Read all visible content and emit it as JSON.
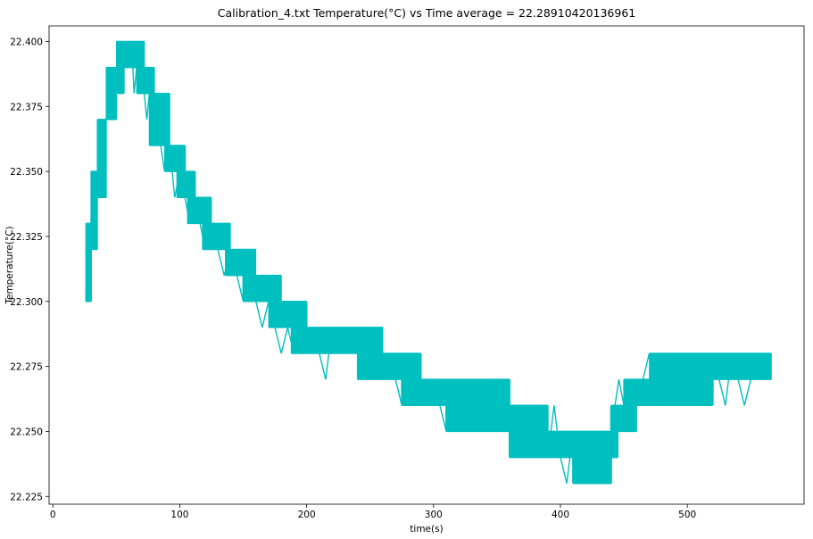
{
  "chart_data": {
    "type": "line",
    "title": "Calibration_4.txt  Temperature(°C) vs Time  average = 22.28910420136961",
    "xlabel": "time(s)",
    "ylabel": "Temperature(°C)",
    "xlim": [
      -3,
      592
    ],
    "ylim": [
      22.222,
      22.406
    ],
    "xticks": [
      0,
      100,
      200,
      300,
      400,
      500
    ],
    "yticks": [
      22.225,
      22.25,
      22.275,
      22.3,
      22.325,
      22.35,
      22.375,
      22.4
    ],
    "ytick_labels": [
      "22.225",
      "22.250",
      "22.275",
      "22.300",
      "22.325",
      "22.350",
      "22.375",
      "22.400"
    ],
    "grid": false,
    "line_color": "#00bfbf",
    "series": [
      {
        "x": [
          26,
          27,
          28,
          29,
          30,
          31,
          32,
          34,
          35,
          36,
          38,
          40,
          42,
          45,
          48,
          50,
          53,
          56,
          58,
          60,
          62,
          64,
          66,
          68,
          70,
          72,
          74,
          76,
          78,
          80,
          82,
          85,
          88,
          92,
          96,
          100,
          104,
          108,
          112,
          116,
          120,
          125,
          130,
          135,
          140,
          145,
          150,
          155,
          160,
          165,
          170,
          175,
          180,
          185,
          190,
          195,
          200,
          205,
          210,
          215,
          220,
          225,
          230,
          235,
          240,
          245,
          250,
          255,
          260,
          265,
          270,
          275,
          280,
          285,
          290,
          295,
          300,
          305,
          310,
          315,
          320,
          325,
          330,
          335,
          340,
          345,
          350,
          355,
          360,
          365,
          370,
          375,
          380,
          385,
          390,
          395,
          400,
          405,
          410,
          415,
          418,
          420,
          425,
          430,
          435,
          440,
          443,
          446,
          450,
          455,
          460,
          465,
          470,
          475,
          480,
          485,
          490,
          495,
          500,
          505,
          510,
          515,
          520,
          525,
          530,
          535,
          540,
          545,
          550,
          555,
          560,
          565,
          566
        ],
        "y": [
          22.3,
          22.32,
          22.33,
          22.32,
          22.33,
          22.34,
          22.33,
          22.34,
          22.35,
          22.34,
          22.36,
          22.35,
          22.37,
          22.38,
          22.37,
          22.39,
          22.4,
          22.39,
          22.4,
          22.39,
          22.4,
          22.38,
          22.39,
          22.38,
          22.39,
          22.38,
          22.37,
          22.38,
          22.37,
          22.36,
          22.37,
          22.36,
          22.35,
          22.36,
          22.34,
          22.35,
          22.34,
          22.33,
          22.34,
          22.33,
          22.32,
          22.33,
          22.32,
          22.31,
          22.32,
          22.31,
          22.3,
          22.31,
          22.3,
          22.29,
          22.3,
          22.29,
          22.28,
          22.29,
          22.28,
          22.29,
          22.28,
          22.29,
          22.28,
          22.27,
          22.29,
          22.28,
          22.29,
          22.28,
          22.29,
          22.27,
          22.29,
          22.28,
          22.27,
          22.28,
          22.27,
          22.26,
          22.27,
          22.26,
          22.27,
          22.26,
          22.27,
          22.26,
          22.25,
          22.27,
          22.26,
          22.25,
          22.26,
          22.27,
          22.26,
          22.25,
          22.26,
          22.25,
          22.26,
          22.25,
          22.24,
          22.25,
          22.24,
          22.25,
          22.24,
          22.26,
          22.24,
          22.23,
          22.25,
          22.24,
          22.23,
          22.25,
          22.24,
          22.23,
          22.24,
          22.25,
          22.26,
          22.27,
          22.26,
          22.27,
          22.26,
          22.27,
          22.28,
          22.26,
          22.27,
          22.28,
          22.27,
          22.26,
          22.28,
          22.27,
          22.28,
          22.27,
          22.28,
          22.27,
          22.26,
          22.28,
          22.27,
          22.26,
          22.27,
          22.28,
          22.27,
          22.28,
          22.27
        ],
        "noise_levels": [
          [
            26,
            30,
            22.3,
            22.33
          ],
          [
            30,
            35,
            22.32,
            22.35
          ],
          [
            35,
            42,
            22.34,
            22.37
          ],
          [
            42,
            50,
            22.37,
            22.39
          ],
          [
            50,
            56,
            22.38,
            22.4
          ],
          [
            56,
            72,
            22.39,
            22.4
          ],
          [
            66,
            80,
            22.38,
            22.39
          ],
          [
            76,
            92,
            22.36,
            22.38
          ],
          [
            88,
            104,
            22.35,
            22.36
          ],
          [
            98,
            112,
            22.34,
            22.35
          ],
          [
            106,
            125,
            22.33,
            22.34
          ],
          [
            118,
            140,
            22.32,
            22.33
          ],
          [
            136,
            160,
            22.31,
            22.32
          ],
          [
            150,
            180,
            22.3,
            22.31
          ],
          [
            170,
            200,
            22.29,
            22.3
          ],
          [
            188,
            260,
            22.28,
            22.29
          ],
          [
            240,
            290,
            22.27,
            22.28
          ],
          [
            275,
            360,
            22.26,
            22.27
          ],
          [
            310,
            390,
            22.25,
            22.26
          ],
          [
            360,
            445,
            22.24,
            22.25
          ],
          [
            410,
            440,
            22.23,
            22.24
          ],
          [
            440,
            460,
            22.25,
            22.26
          ],
          [
            450,
            520,
            22.26,
            22.27
          ],
          [
            470,
            566,
            22.27,
            22.28
          ]
        ]
      }
    ]
  }
}
